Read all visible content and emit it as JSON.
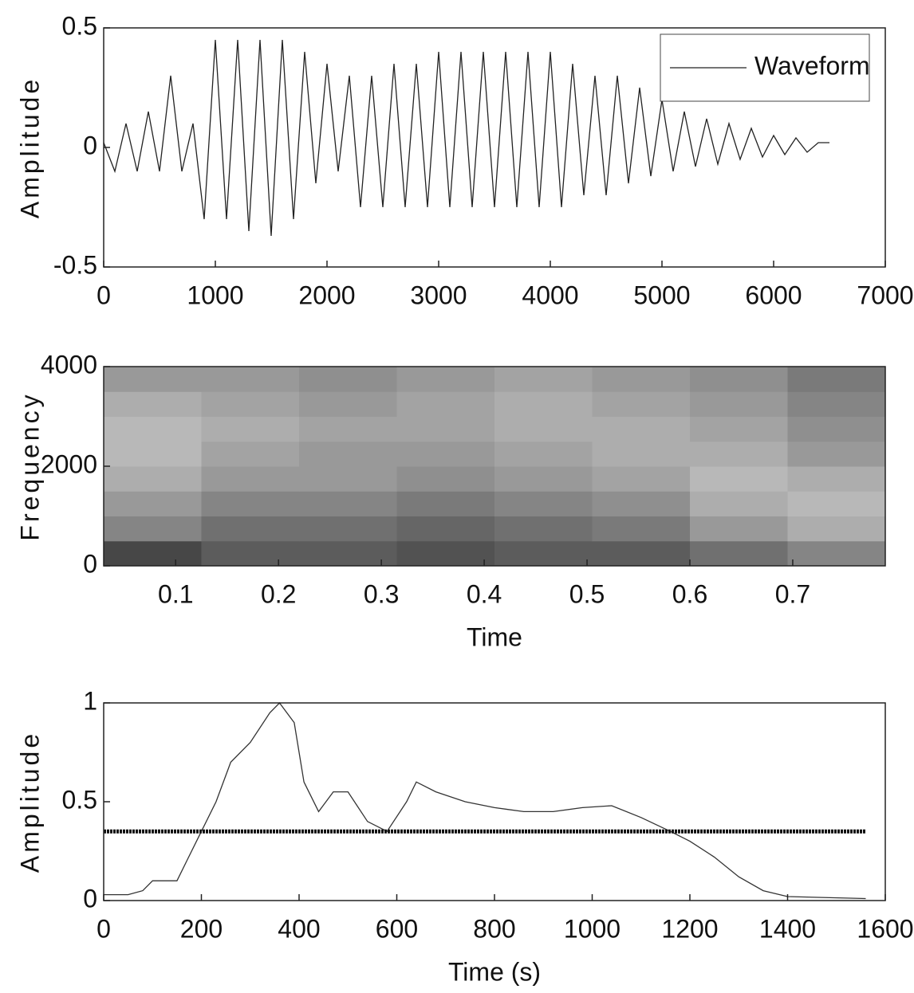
{
  "chart_data": [
    {
      "type": "line",
      "ylabel": "Amplitude",
      "xlim": [
        0,
        7000
      ],
      "ylim": [
        -0.5,
        0.5
      ],
      "xticks": [
        0,
        1000,
        2000,
        3000,
        4000,
        5000,
        6000,
        7000
      ],
      "yticks": [
        -0.5,
        0,
        0.5
      ],
      "legend": "upper right",
      "series": [
        {
          "name": "Waveform",
          "color": "#222222",
          "x": [
            0,
            100,
            200,
            300,
            400,
            500,
            600,
            700,
            800,
            900,
            1000,
            1100,
            1200,
            1300,
            1400,
            1500,
            1600,
            1700,
            1800,
            1900,
            2000,
            2100,
            2200,
            2300,
            2400,
            2500,
            2600,
            2700,
            2800,
            2900,
            3000,
            3100,
            3200,
            3300,
            3400,
            3500,
            3600,
            3700,
            3800,
            3900,
            4000,
            4100,
            4200,
            4300,
            4400,
            4500,
            4600,
            4700,
            4800,
            4900,
            5000,
            5100,
            5200,
            5300,
            5400,
            5500,
            5600,
            5700,
            5800,
            5900,
            6000,
            6100,
            6200,
            6300,
            6400,
            6500
          ],
          "values": [
            0.02,
            -0.1,
            0.1,
            -0.1,
            0.15,
            -0.1,
            0.3,
            -0.1,
            0.1,
            -0.3,
            0.45,
            -0.3,
            0.45,
            -0.35,
            0.45,
            -0.37,
            0.45,
            -0.3,
            0.4,
            -0.15,
            0.35,
            -0.1,
            0.3,
            -0.25,
            0.3,
            -0.25,
            0.35,
            -0.25,
            0.35,
            -0.25,
            0.4,
            -0.25,
            0.4,
            -0.25,
            0.4,
            -0.25,
            0.4,
            -0.25,
            0.4,
            -0.25,
            0.4,
            -0.25,
            0.35,
            -0.2,
            0.3,
            -0.2,
            0.3,
            -0.15,
            0.25,
            -0.12,
            0.2,
            -0.1,
            0.15,
            -0.08,
            0.12,
            -0.07,
            0.1,
            -0.05,
            0.08,
            -0.04,
            0.05,
            -0.03,
            0.04,
            -0.02,
            0.02,
            0.02
          ]
        }
      ]
    },
    {
      "type": "heatmap",
      "xlabel": "Time",
      "ylabel": "Frequency",
      "xlim": [
        0.03,
        0.79
      ],
      "ylim": [
        0,
        4000
      ],
      "xticks": [
        0.1,
        0.2,
        0.3,
        0.4,
        0.5,
        0.6,
        0.7
      ],
      "yticks": [
        0,
        2000,
        4000
      ],
      "x": [
        0.0775,
        0.1725,
        0.2675,
        0.3625,
        0.4575,
        0.5525,
        0.6475,
        0.7425
      ],
      "y": [
        250,
        750,
        1250,
        1750,
        2250,
        2750,
        3250,
        3750
      ],
      "z": [
        [
          0.9,
          0.8,
          0.8,
          0.85,
          0.8,
          0.8,
          0.7,
          0.6
        ],
        [
          0.6,
          0.7,
          0.7,
          0.75,
          0.7,
          0.65,
          0.5,
          0.4
        ],
        [
          0.5,
          0.6,
          0.6,
          0.65,
          0.6,
          0.55,
          0.4,
          0.35
        ],
        [
          0.4,
          0.5,
          0.5,
          0.55,
          0.5,
          0.45,
          0.35,
          0.4
        ],
        [
          0.35,
          0.45,
          0.5,
          0.5,
          0.45,
          0.4,
          0.4,
          0.5
        ],
        [
          0.35,
          0.4,
          0.45,
          0.45,
          0.4,
          0.4,
          0.45,
          0.55
        ],
        [
          0.4,
          0.45,
          0.5,
          0.45,
          0.4,
          0.45,
          0.5,
          0.6
        ],
        [
          0.5,
          0.5,
          0.55,
          0.5,
          0.45,
          0.5,
          0.55,
          0.65
        ]
      ]
    },
    {
      "type": "line",
      "xlabel": "Time (s)",
      "ylabel": "Amplitude",
      "xlim": [
        0,
        1600
      ],
      "ylim": [
        0,
        1
      ],
      "xticks": [
        0,
        200,
        400,
        600,
        800,
        1000,
        1200,
        1400,
        1600
      ],
      "yticks": [
        0,
        0.5,
        1
      ],
      "series": [
        {
          "color": "#333333",
          "x": [
            0,
            50,
            80,
            100,
            150,
            170,
            200,
            230,
            260,
            300,
            340,
            360,
            390,
            410,
            440,
            470,
            500,
            540,
            580,
            620,
            640,
            680,
            740,
            800,
            860,
            920,
            980,
            1040,
            1100,
            1160,
            1200,
            1250,
            1300,
            1350,
            1400,
            1560
          ],
          "values": [
            0.03,
            0.03,
            0.05,
            0.1,
            0.1,
            0.2,
            0.35,
            0.5,
            0.7,
            0.8,
            0.95,
            1,
            0.9,
            0.6,
            0.45,
            0.55,
            0.55,
            0.4,
            0.35,
            0.5,
            0.6,
            0.55,
            0.5,
            0.47,
            0.45,
            0.45,
            0.47,
            0.48,
            0.42,
            0.35,
            0.3,
            0.22,
            0.12,
            0.05,
            0.02,
            0.01
          ]
        },
        {
          "color": "#111111",
          "x": [
            0,
            1560
          ],
          "values": [
            0.35,
            0.35
          ]
        }
      ]
    }
  ]
}
